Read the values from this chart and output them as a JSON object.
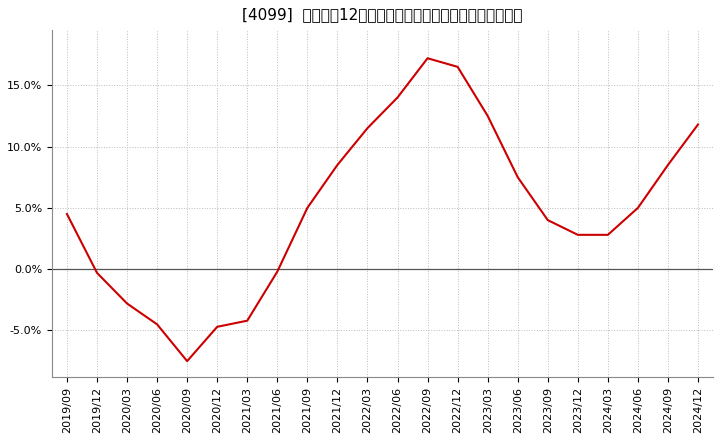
{
  "title": "[4099]  売上高の12か月移動合計の対前年同期増減率の推移",
  "x_labels": [
    "2019/09",
    "2019/12",
    "2020/03",
    "2020/06",
    "2020/09",
    "2020/12",
    "2021/03",
    "2021/06",
    "2021/09",
    "2021/12",
    "2022/03",
    "2022/06",
    "2022/09",
    "2022/12",
    "2023/03",
    "2023/06",
    "2023/09",
    "2023/12",
    "2024/03",
    "2024/06",
    "2024/09",
    "2024/12"
  ],
  "y_values": [
    4.5,
    -0.3,
    -2.8,
    -4.5,
    -7.5,
    -4.7,
    -4.2,
    -0.2,
    5.0,
    8.5,
    11.5,
    14.0,
    17.2,
    16.5,
    12.5,
    7.5,
    4.0,
    2.8,
    2.8,
    5.0,
    8.5,
    11.8
  ],
  "line_color": "#cc0000",
  "zero_line_color": "#555555",
  "grid_color": "#bbbbbb",
  "bg_color": "#ffffff",
  "plot_bg_color": "#ffffff",
  "ylim": [
    -8.8,
    19.5
  ],
  "yticks": [
    -5.0,
    0.0,
    5.0,
    10.0,
    15.0
  ],
  "title_fontsize": 11,
  "tick_fontsize": 8
}
